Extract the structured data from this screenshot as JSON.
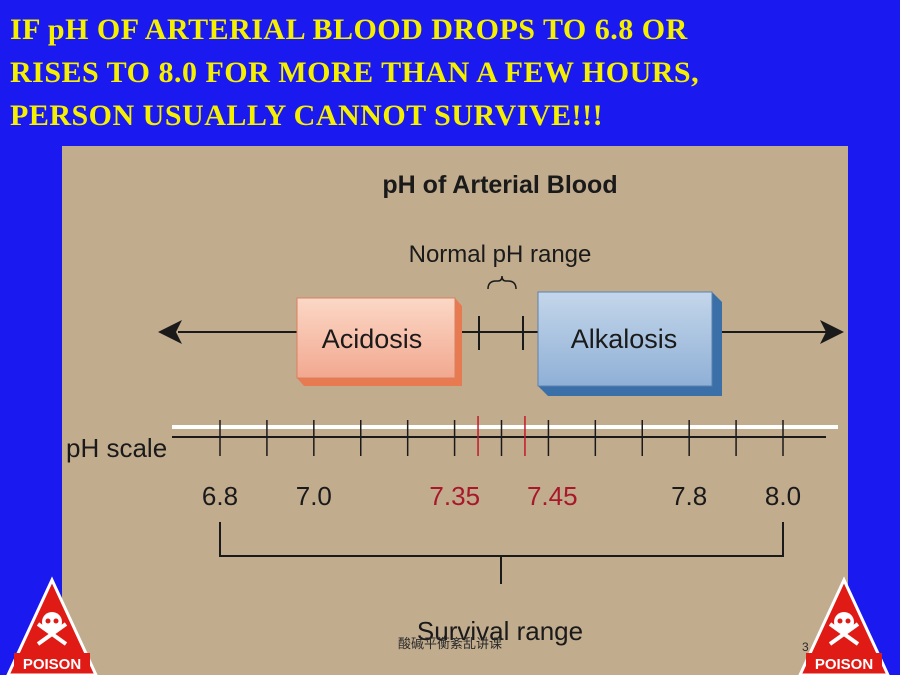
{
  "headline": {
    "lines": [
      "IF pH OF ARTERIAL BLOOD DROPS TO 6.8 OR",
      "RISES TO 8.0 FOR MORE THAN A FEW HOURS,",
      "PERSON USUALLY CANNOT SURVIVE!!!"
    ]
  },
  "figure": {
    "title": "pH of Arterial Blood",
    "normal_range_label": "Normal pH range",
    "acidosis_label": "Acidosis",
    "alkalosis_label": "Alkalosis",
    "scale_label": "pH scale",
    "survival_range_label": "Survival range",
    "tick_labels": [
      {
        "text": "6.8",
        "value": 6.8,
        "color": "#1a1a1a"
      },
      {
        "text": "7.0",
        "value": 7.0,
        "color": "#1a1a1a"
      },
      {
        "text": "7.35",
        "value": 7.35,
        "color": "#a8182a"
      },
      {
        "text": "7.45",
        "value": 7.45,
        "color": "#a8182a"
      },
      {
        "text": "7.8",
        "value": 7.8,
        "color": "#1a1a1a"
      },
      {
        "text": "8.0",
        "value": 8.0,
        "color": "#1a1a1a"
      }
    ],
    "normal_range": [
      7.35,
      7.45
    ],
    "survival_range": [
      6.8,
      8.0
    ],
    "colors": {
      "acidosis": "#f2a890",
      "alkalosis": "#8fb0d6",
      "normal_ticks": "#c21a2a"
    }
  },
  "poison_sign": {
    "label": "POISON"
  },
  "footer": {
    "caption": "酸碱平衡紊乱讲课",
    "page": "3"
  }
}
